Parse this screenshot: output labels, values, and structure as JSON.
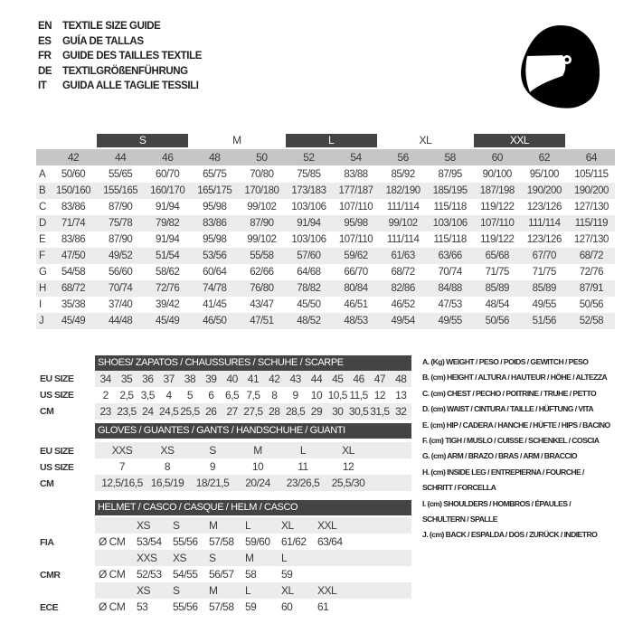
{
  "titles": [
    {
      "code": "EN",
      "text": "TEXTILE SIZE GUIDE"
    },
    {
      "code": "ES",
      "text": "GUÍA DE TALLAS"
    },
    {
      "code": "FR",
      "text": "GUIDE DES TAILLES TEXTILE"
    },
    {
      "code": "DE",
      "text": "TEXTILGRÖßENFÜHRUNG"
    },
    {
      "code": "IT",
      "text": "GUIDA ALLE TAGLIE TESSILI"
    }
  ],
  "icon": "helmet-icon",
  "textile": {
    "size_groups": [
      {
        "label": "S",
        "span": 2,
        "style": "dark"
      },
      {
        "label": "M",
        "span": 2,
        "style": "plain"
      },
      {
        "label": "L",
        "span": 2,
        "style": "dark"
      },
      {
        "label": "XL",
        "span": 2,
        "style": "plain"
      },
      {
        "label": "XXL",
        "span": 2,
        "style": "dark"
      }
    ],
    "columns": [
      "42",
      "44",
      "46",
      "48",
      "50",
      "52",
      "54",
      "56",
      "58",
      "60",
      "62",
      "64"
    ],
    "rows": [
      {
        "key": "A",
        "values": [
          "50/60",
          "55/65",
          "60/70",
          "65/75",
          "70/80",
          "75/85",
          "83/88",
          "85/92",
          "87/95",
          "90/100",
          "95/100",
          "105/115"
        ]
      },
      {
        "key": "B",
        "values": [
          "150/160",
          "155/165",
          "160/170",
          "165/175",
          "170/180",
          "173/183",
          "177/187",
          "182/190",
          "185/195",
          "187/198",
          "190/200",
          "190/200"
        ]
      },
      {
        "key": "C",
        "values": [
          "83/86",
          "87/90",
          "91/94",
          "95/98",
          "99/102",
          "103/106",
          "107/110",
          "111/114",
          "115/118",
          "119/122",
          "123/126",
          "127/130"
        ]
      },
      {
        "key": "D",
        "values": [
          "71/74",
          "75/78",
          "79/82",
          "83/86",
          "87/90",
          "91/94",
          "95/98",
          "99/102",
          "103/106",
          "107/110",
          "111/114",
          "115/119"
        ]
      },
      {
        "key": "E",
        "values": [
          "83/86",
          "87/90",
          "91/94",
          "95/98",
          "99/102",
          "103/106",
          "107/110",
          "111/114",
          "115/118",
          "119/122",
          "123/126",
          "127/130"
        ]
      },
      {
        "key": "F",
        "values": [
          "47/50",
          "49/52",
          "51/54",
          "53/56",
          "55/58",
          "57/60",
          "59/62",
          "61/63",
          "63/66",
          "65/68",
          "67/70",
          "68/72"
        ]
      },
      {
        "key": "G",
        "values": [
          "54/58",
          "56/60",
          "58/62",
          "60/64",
          "62/66",
          "64/68",
          "66/70",
          "68/72",
          "70/74",
          "71/75",
          "71/75",
          "72/76"
        ]
      },
      {
        "key": "H",
        "values": [
          "68/72",
          "70/74",
          "72/76",
          "74/78",
          "76/80",
          "78/82",
          "80/84",
          "82/86",
          "84/88",
          "85/89",
          "85/89",
          "87/91"
        ]
      },
      {
        "key": "I",
        "values": [
          "35/38",
          "37/40",
          "39/42",
          "41/45",
          "43/47",
          "45/50",
          "46/51",
          "46/52",
          "47/53",
          "48/54",
          "49/55",
          "50/56"
        ]
      },
      {
        "key": "J",
        "values": [
          "45/49",
          "44/48",
          "45/49",
          "46/50",
          "47/51",
          "48/52",
          "48/53",
          "49/54",
          "49/55",
          "50/56",
          "51/56",
          "52/58"
        ]
      }
    ]
  },
  "shoes": {
    "title": "SHOES/ ZAPATOS / CHAUSSURES / SCHUHE / SCARPE",
    "rows": [
      {
        "label": "EU SIZE",
        "values": [
          "34",
          "35",
          "36",
          "37",
          "38",
          "39",
          "40",
          "41",
          "42",
          "43",
          "44",
          "45",
          "46",
          "47",
          "48"
        ]
      },
      {
        "label": "US SIZE",
        "values": [
          "2",
          "2,5",
          "3,5",
          "4",
          "5",
          "6",
          "6,5",
          "7,5",
          "8",
          "9",
          "10",
          "10,5",
          "11,5",
          "12",
          "13"
        ]
      },
      {
        "label": "CM",
        "values": [
          "23",
          "23,5",
          "24",
          "24,5",
          "25,5",
          "26",
          "27",
          "27,5",
          "28",
          "28,5",
          "29",
          "30",
          "30,5",
          "31,5",
          "32"
        ]
      }
    ]
  },
  "gloves": {
    "title": "GLOVES / GUANTES / GANTS / HANDSCHUHE / GUANTI",
    "rows": [
      {
        "label": "EU SIZE",
        "values": [
          "XXS",
          "XS",
          "S",
          "M",
          "L",
          "XL"
        ]
      },
      {
        "label": "US SIZE",
        "values": [
          "7",
          "8",
          "9",
          "10",
          "11",
          "12"
        ]
      },
      {
        "label": "CM",
        "values": [
          "12,5/16,5",
          "16,5/19",
          "18/21,5",
          "20/24",
          "23/26,5",
          "25,5/30"
        ]
      }
    ]
  },
  "helmet": {
    "title": "HELMET / CASCO / CASQUE / HELM / CASCO",
    "unit": "Ø CM",
    "standards": [
      {
        "label": "FIA",
        "sizes": [
          "XS",
          "S",
          "M",
          "L",
          "XL",
          "XXL"
        ],
        "values": [
          "53/54",
          "55/56",
          "57/58",
          "59/60",
          "61/62",
          "63/64"
        ]
      },
      {
        "label": "CMR",
        "sizes": [
          "XXS",
          "XS",
          "S",
          "M",
          "L"
        ],
        "values": [
          "52/53",
          "54/55",
          "56/57",
          "58",
          "59"
        ]
      },
      {
        "label": "ECE",
        "sizes": [
          "XS",
          "S",
          "M",
          "L",
          "XL",
          "XXL"
        ],
        "values": [
          "53",
          "55/56",
          "57/58",
          "59",
          "60",
          "61"
        ]
      }
    ]
  },
  "legend": [
    "A. (Kg) WEIGHT / PESO / POIDS / GEWITCH / PESO",
    "B. (cm) HEIGHT / ALTURA / HAUTEUR / HÖHE / ALTEZZA",
    "C. (cm) CHEST / PECHO / POITRINE / TRUHE / PETTO",
    "D. (cm) WAIST / CINTURA / TAILLE / HÜFTUNG / VITA",
    "E. (cm) HIP / CADERA / HANCHE / HÜFTE / HIPS /  BACINO",
    "F.  (cm) TIGH / MUSLO / CUISSE / SCHENKEL / COSCIA",
    "G. (cm) ARM  / BRAZO / BRAS / ARM / BRACCIO",
    "H. (cm) INSIDE LEG / ENTREPIERNA / FOURCHE /",
    "SCHRITT / FORCELLA",
    "I.  (cm) SHOULDERS / HOMBROS / ÉPAULES /",
    "SCHULTERN / SPALLE",
    "J. (cm) BACK / ESPALDA / DOS / ZURÜCK / INDIETRO"
  ]
}
